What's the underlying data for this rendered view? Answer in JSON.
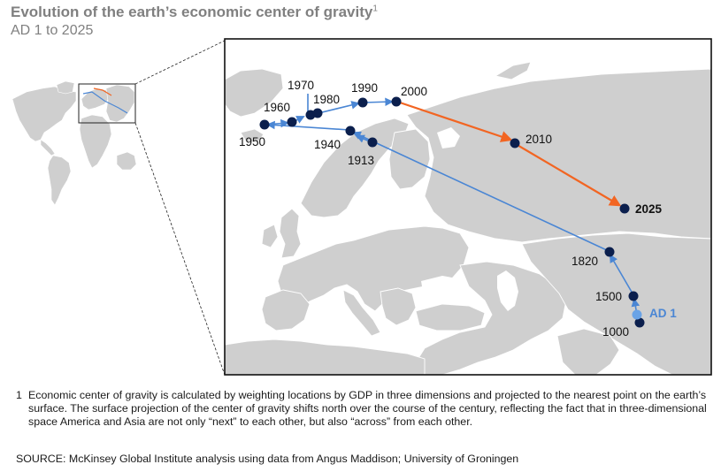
{
  "header": {
    "title": "Evolution of the earth’s economic center of gravity",
    "title_sup": "1",
    "subtitle": "AD 1 to 2025"
  },
  "colors": {
    "land": "#cfcfcf",
    "land_border": "#ffffff",
    "sea": "#ffffff",
    "historic_path": "#4a86d4",
    "projected_path": "#f26522",
    "point": "#0b1f4d",
    "ad1_point": "#6aa3e6"
  },
  "points": [
    {
      "id": "ad1",
      "label": "AD 1"
    },
    {
      "id": "1000",
      "label": "1000"
    },
    {
      "id": "1500",
      "label": "1500"
    },
    {
      "id": "1820",
      "label": "1820"
    },
    {
      "id": "1913",
      "label": "1913"
    },
    {
      "id": "1940",
      "label": "1940"
    },
    {
      "id": "1950",
      "label": "1950"
    },
    {
      "id": "1960",
      "label": "1960"
    },
    {
      "id": "1970",
      "label": "1970"
    },
    {
      "id": "1980",
      "label": "1980"
    },
    {
      "id": "1990",
      "label": "1990"
    },
    {
      "id": "2000",
      "label": "2000"
    },
    {
      "id": "2010",
      "label": "2010"
    },
    {
      "id": "2025",
      "label": "2025"
    }
  ],
  "footnote": {
    "number": "1",
    "text": "Economic center of gravity is calculated by weighting locations by GDP in three dimensions and projected to the nearest point on the earth’s surface. The surface projection of the center of gravity shifts north over the course of the century, reflecting the fact that in three-dimensional space America and Asia are not only “next” to each other, but also “across” from each other."
  },
  "source": "SOURCE: McKinsey Global Institute analysis using data from Angus Maddison; University of Groningen"
}
